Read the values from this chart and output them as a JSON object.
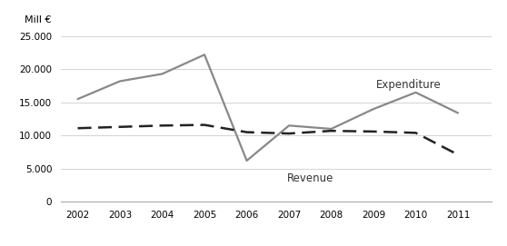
{
  "years": [
    2002,
    2003,
    2004,
    2005,
    2006,
    2007,
    2008,
    2009,
    2010,
    2011
  ],
  "expenditure": [
    15500,
    18200,
    19300,
    22200,
    6200,
    11500,
    11000,
    14000,
    16500,
    13400
  ],
  "revenue": [
    11100,
    11300,
    11500,
    11600,
    10500,
    10300,
    10700,
    10600,
    10400,
    7100
  ],
  "expenditure_color": "#888888",
  "revenue_color": "#222222",
  "ylim": [
    0,
    26000
  ],
  "yticks": [
    0,
    5000,
    10000,
    15000,
    20000,
    25000
  ],
  "ylabel": "Mill €",
  "expenditure_label": "Expenditure",
  "revenue_label": "Revenue",
  "background_color": "#ffffff",
  "grid_color": "#cccccc",
  "xlim_left": 2001.6,
  "xlim_right": 2011.8
}
